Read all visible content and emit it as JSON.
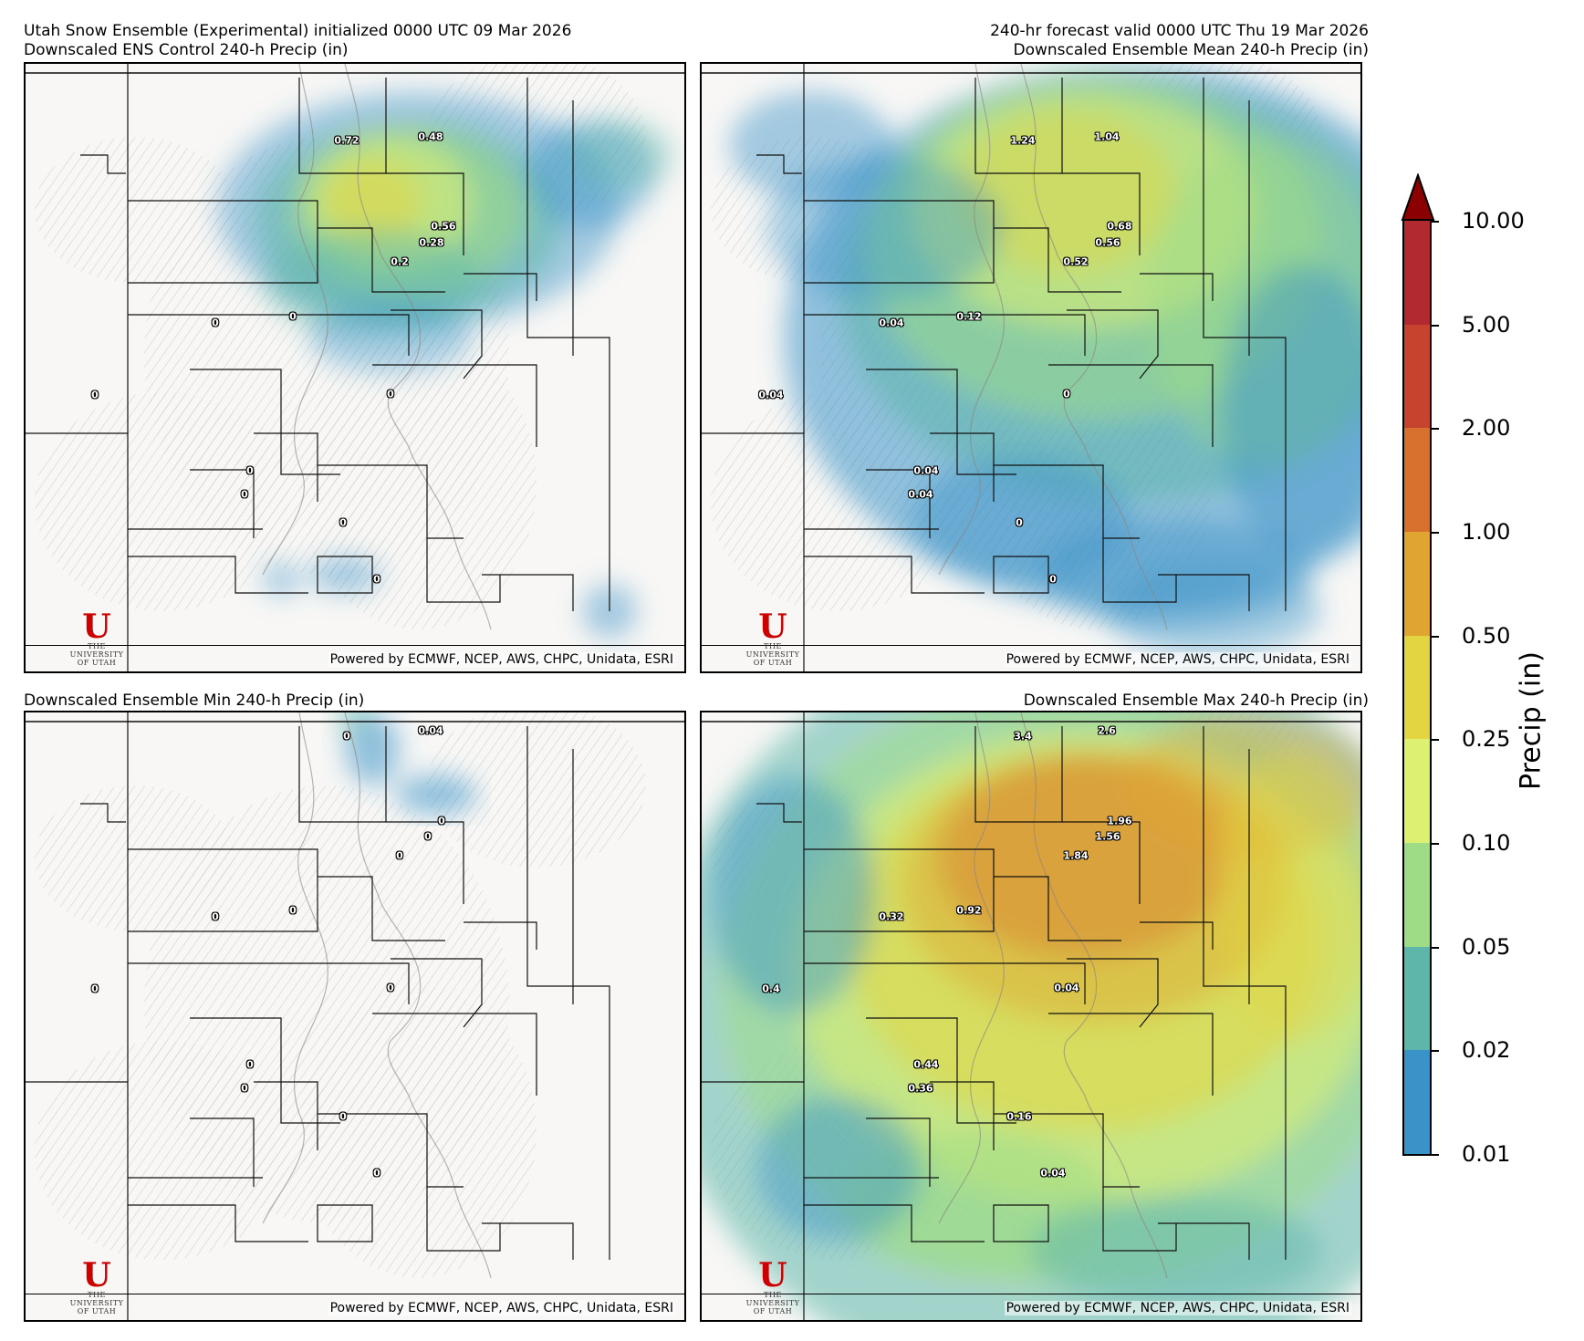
{
  "header": {
    "line1_left": "Utah Snow Ensemble (Experimental) initialized 0000 UTC 09 Mar 2026",
    "line1_right": "240-hr forecast valid 0000 UTC Thu 19 Mar 2026"
  },
  "credit": "Powered by ECMWF, NCEP, AWS, CHPC, Unidata, ESRI",
  "logo": {
    "letter": "U",
    "line1": "THE",
    "line2": "UNIVERSITY",
    "line3": "OF UTAH"
  },
  "panels": [
    {
      "title": "Downscaled ENS Control 240-h Precip (in)",
      "labels": [
        "0.72",
        "0.48",
        "0.56",
        "0.28",
        "0.2",
        "0",
        "0",
        "0",
        "0",
        "0",
        "0",
        "0",
        "0"
      ]
    },
    {
      "title": "Downscaled Ensemble Mean 240-h Precip (in)",
      "labels": [
        "1.24",
        "1.04",
        "0.68",
        "0.56",
        "0.52",
        "0.04",
        "0.12",
        "0",
        "0.04",
        "0.04",
        "0.04",
        "0",
        "0"
      ]
    },
    {
      "title": "Downscaled Ensemble Min 240-h Precip (in)",
      "labels": [
        "0",
        "0.04",
        "0",
        "0",
        "0",
        "0",
        "0",
        "0",
        "0",
        "0",
        "0",
        "0",
        "0"
      ]
    },
    {
      "title": "Downscaled Ensemble Max 240-h Precip (in)",
      "labels": [
        "3.4",
        "2.6",
        "1.96",
        "1.56",
        "1.84",
        "0.32",
        "0.92",
        "0.04",
        "0.4",
        "0.44",
        "0.36",
        "0.16",
        "0.04"
      ]
    }
  ],
  "colorbar": {
    "label": "Precip (in)",
    "ticks": [
      "10.00",
      "5.00",
      "2.00",
      "1.00",
      "0.50",
      "0.25",
      "0.10",
      "0.05",
      "0.02",
      "0.01"
    ],
    "colors": [
      "#b22a30",
      "#c8432e",
      "#d8712e",
      "#e0a531",
      "#e3d541",
      "#def071",
      "#9edc86",
      "#5db6a9",
      "#3a93c8"
    ],
    "extend_color": "#8b0000"
  }
}
